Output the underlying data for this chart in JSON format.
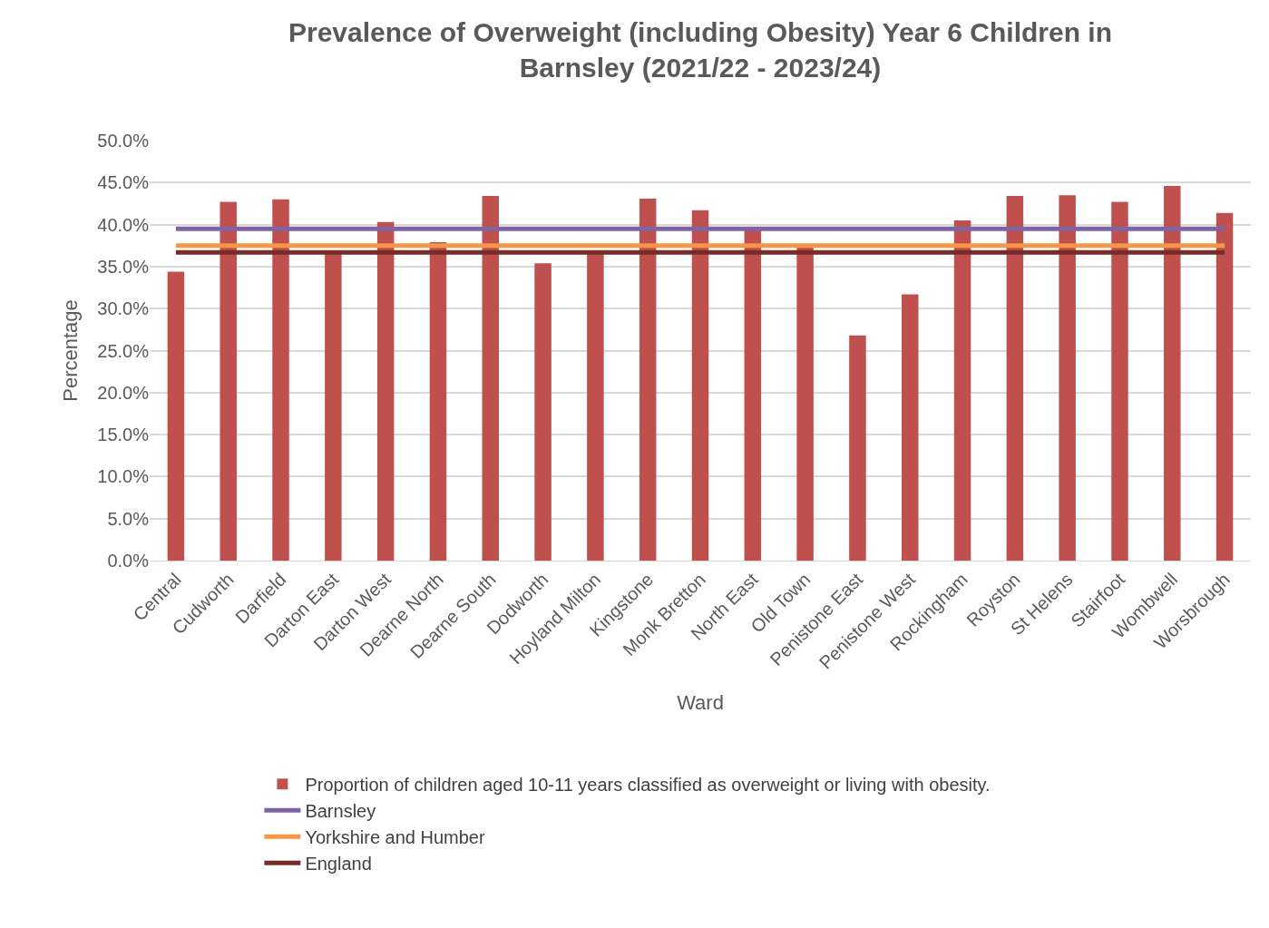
{
  "chart_data": {
    "type": "bar",
    "title": "Prevalence of Overweight (including Obesity) Year 6 Children in Barnsley (2021/22 - 2023/24)",
    "xlabel": "Ward",
    "ylabel": "Percentage",
    "categories": [
      "Central",
      "Cudworth",
      "Darfield",
      "Darton East",
      "Darton West",
      "Dearne North",
      "Dearne South",
      "Dodworth",
      "Hoyland Milton",
      "Kingstone",
      "Monk Bretton",
      "North East",
      "Old Town",
      "Penistone East",
      "Penistone West",
      "Rockingham",
      "Royston",
      "St Helens",
      "Stairfoot",
      "Wombwell",
      "Worsbrough"
    ],
    "series": [
      {
        "name": "Proportion of children aged 10-11 years classified as overweight or living with obesity.",
        "color": "#c0504d",
        "values": [
          34.4,
          42.7,
          43.0,
          36.6,
          40.3,
          37.9,
          43.4,
          35.4,
          36.8,
          43.1,
          41.7,
          39.4,
          37.3,
          26.8,
          31.7,
          40.5,
          43.4,
          43.5,
          42.7,
          44.6,
          41.4
        ]
      },
      {
        "name": "Barnsley",
        "type": "line",
        "color": "#8064a2",
        "values": [
          39.5,
          39.5,
          39.5,
          39.5,
          39.5,
          39.5,
          39.5,
          39.5,
          39.5,
          39.5,
          39.5,
          39.5,
          39.5,
          39.5,
          39.5,
          39.5,
          39.5,
          39.5,
          39.5,
          39.5,
          39.5
        ]
      },
      {
        "name": "Yorkshire and Humber",
        "type": "line",
        "color": "#f79646",
        "values": [
          37.5,
          37.5,
          37.5,
          37.5,
          37.5,
          37.5,
          37.5,
          37.5,
          37.5,
          37.5,
          37.5,
          37.5,
          37.5,
          37.5,
          37.5,
          37.5,
          37.5,
          37.5,
          37.5,
          37.5,
          37.5
        ]
      },
      {
        "name": "England",
        "type": "line",
        "color": "#772c2a",
        "values": [
          36.7,
          36.7,
          36.7,
          36.7,
          36.7,
          36.7,
          36.7,
          36.7,
          36.7,
          36.7,
          36.7,
          36.7,
          36.7,
          36.7,
          36.7,
          36.7,
          36.7,
          36.7,
          36.7,
          36.7,
          36.7
        ]
      }
    ],
    "ylim": [
      0,
      50
    ],
    "yticks": [
      {
        "value": 0,
        "label": "0.0%"
      },
      {
        "value": 5,
        "label": "5.0%"
      },
      {
        "value": 10,
        "label": "10.0%"
      },
      {
        "value": 15,
        "label": "15.0%"
      },
      {
        "value": 20,
        "label": "20.0%"
      },
      {
        "value": 25,
        "label": "25.0%"
      },
      {
        "value": 30,
        "label": "30.0%"
      },
      {
        "value": 35,
        "label": "35.0%"
      },
      {
        "value": 40,
        "label": "40.0%"
      },
      {
        "value": 45,
        "label": "45.0%"
      },
      {
        "value": 50,
        "label": "50.0%"
      }
    ],
    "grid": "y",
    "legend": "bottom",
    "marker": "none",
    "line_style": "solid"
  }
}
